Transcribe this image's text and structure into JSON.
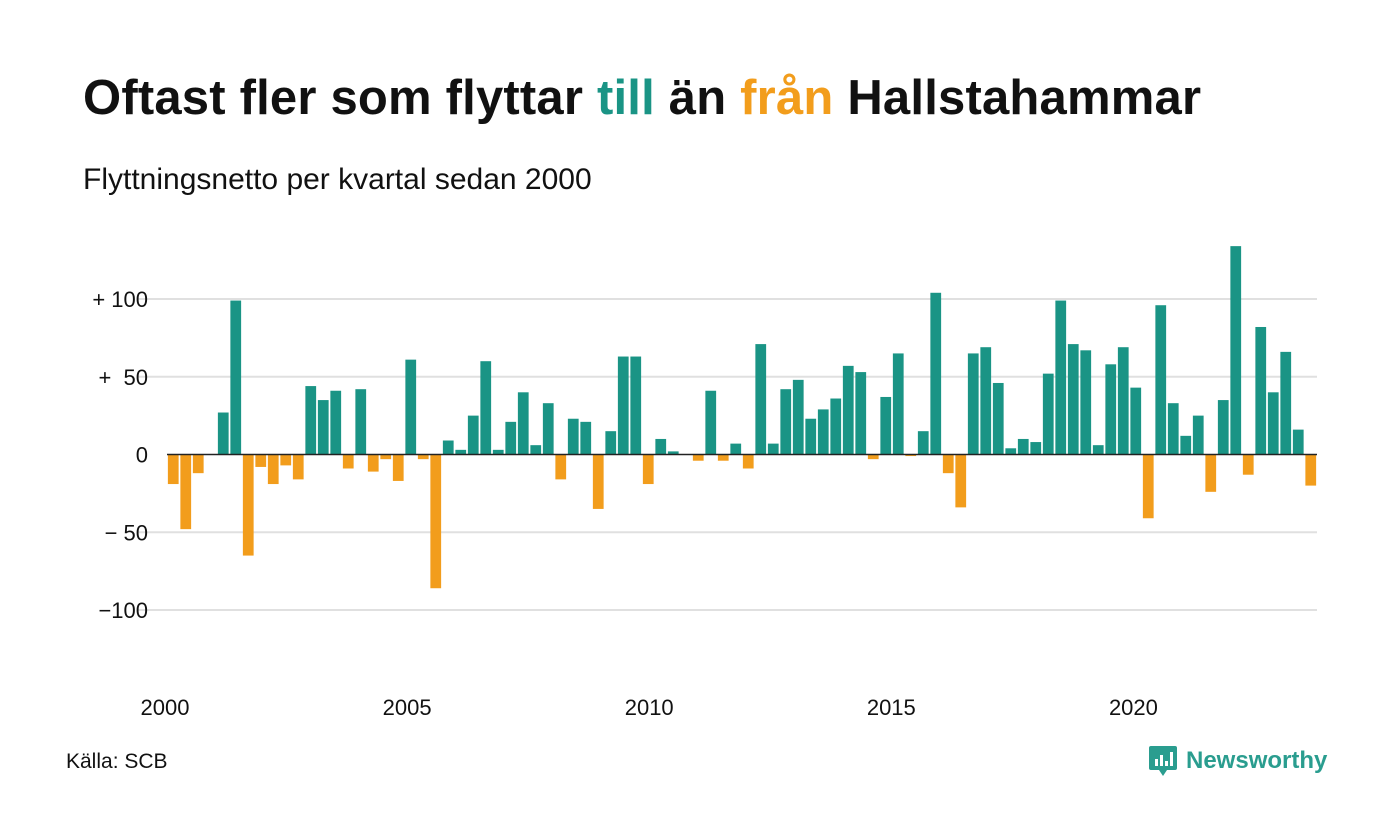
{
  "title": {
    "part1": "Oftast fler som flyttar ",
    "word_till": "till",
    "part2": " än ",
    "word_fran": "från",
    "part3": " Hallstahammar"
  },
  "subtitle": "Flyttningsnetto per kvartal sedan 2000",
  "source": "Källa: SCB",
  "brand": {
    "name": "Newsworthy",
    "icon": "newsworthy-logo-icon"
  },
  "colors": {
    "positive": "#1a9485",
    "negative": "#f29d1c",
    "grid": "#e0e0e0",
    "baseline": "#222222",
    "brand": "#2a9d8f"
  },
  "chart_data": {
    "type": "bar",
    "title": "Oftast fler som flyttar till än från Hallstahammar",
    "subtitle": "Flyttningsnetto per kvartal sedan 2000",
    "x_start": 2000,
    "periods_per_year": 4,
    "ylim": [
      -130,
      135
    ],
    "xlim": [
      2000,
      2023.75
    ],
    "yticks": [
      {
        "value": 100,
        "label": "+ 100"
      },
      {
        "value": 50,
        "label": "+  50"
      },
      {
        "value": 0,
        "label": "0"
      },
      {
        "value": -50,
        "label": "− 50"
      },
      {
        "value": -100,
        "label": "−100"
      }
    ],
    "xticks": [
      {
        "value": 2000,
        "label": "2000"
      },
      {
        "value": 2005,
        "label": "2005"
      },
      {
        "value": 2010,
        "label": "2010"
      },
      {
        "value": 2015,
        "label": "2015"
      },
      {
        "value": 2020,
        "label": "2020"
      }
    ],
    "grid": true,
    "values": [
      -19,
      -48,
      -12,
      0,
      27,
      99,
      -65,
      -8,
      -19,
      -7,
      -16,
      44,
      35,
      41,
      -9,
      42,
      -11,
      -3,
      -17,
      61,
      -3,
      -86,
      9,
      3,
      25,
      60,
      3,
      21,
      40,
      6,
      33,
      -16,
      23,
      21,
      -35,
      15,
      63,
      63,
      -19,
      10,
      2,
      0,
      -4,
      41,
      -4,
      7,
      -9,
      71,
      7,
      42,
      48,
      23,
      29,
      36,
      57,
      53,
      -3,
      37,
      65,
      -1,
      15,
      104,
      -12,
      -34,
      65,
      69,
      46,
      4,
      10,
      8,
      52,
      99,
      71,
      67,
      6,
      58,
      69,
      43,
      -41,
      96,
      33,
      12,
      25,
      -24,
      35,
      134,
      -13,
      82,
      40,
      66,
      16,
      -20
    ]
  }
}
